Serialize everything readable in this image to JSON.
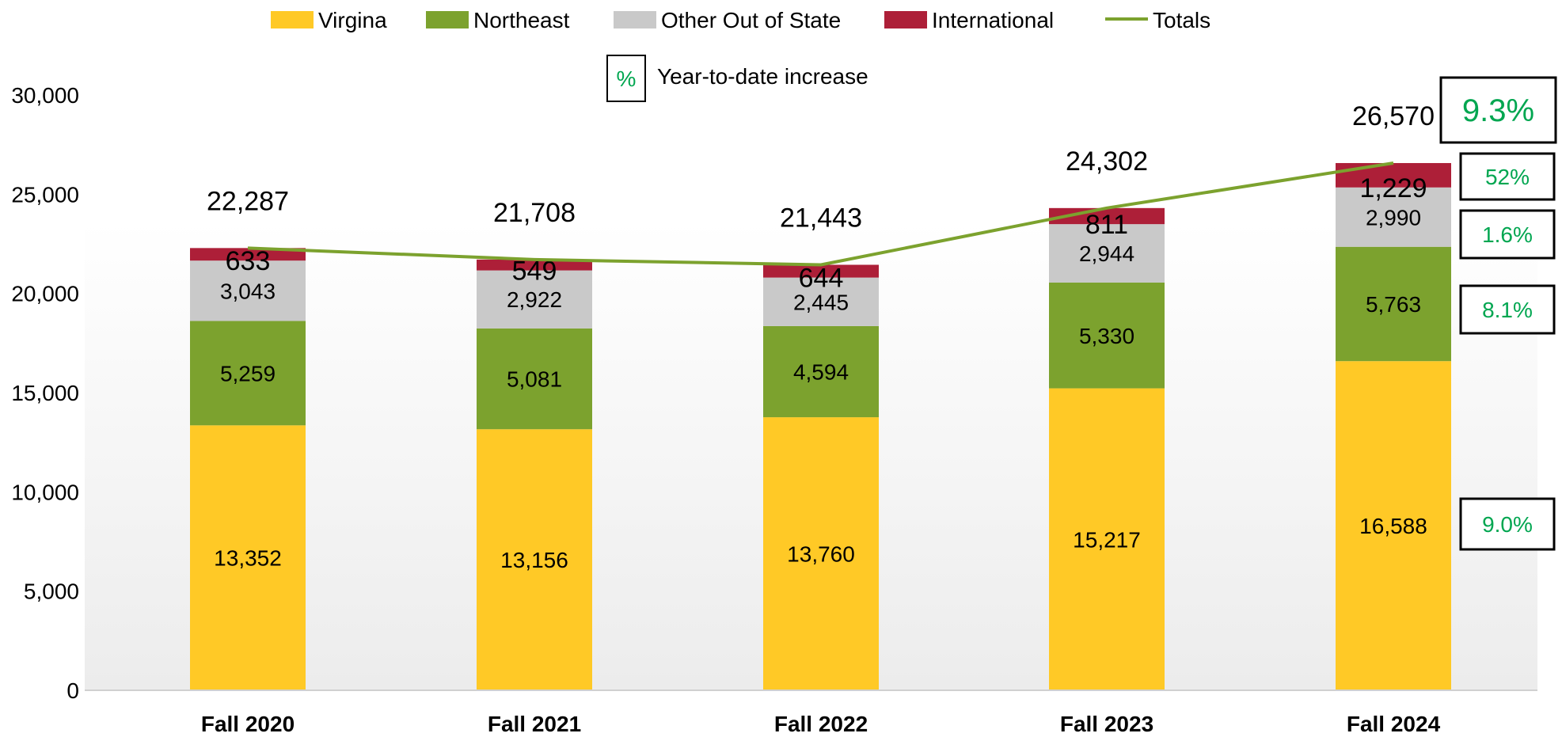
{
  "chart_data": {
    "type": "bar",
    "stacked": true,
    "title": "",
    "xlabel": "",
    "ylabel": "",
    "ylim": [
      0,
      30000
    ],
    "yticks": [
      0,
      5000,
      10000,
      15000,
      20000,
      25000,
      30000
    ],
    "ytick_labels": [
      "0",
      "5,000",
      "10,000",
      "15,000",
      "20,000",
      "25,000",
      "30,000"
    ],
    "grid": false,
    "legend_position": "top",
    "categories": [
      "Fall 2020",
      "Fall 2021",
      "Fall 2022",
      "Fall 2023",
      "Fall 2024"
    ],
    "series": [
      {
        "name": "Virgina",
        "color": "#ffc926",
        "values": [
          13352,
          13156,
          13760,
          15217,
          16588
        ],
        "labels": [
          "13,352",
          "13,156",
          "13,760",
          "15,217",
          "16,588"
        ]
      },
      {
        "name": "Northeast",
        "color": "#7ca22e",
        "values": [
          5259,
          5081,
          4594,
          5330,
          5763
        ],
        "labels": [
          "5,259",
          "5,081",
          "4,594",
          "5,330",
          "5,763"
        ]
      },
      {
        "name": "Other Out of State",
        "color": "#c9c9c9",
        "values": [
          3043,
          2922,
          2445,
          2944,
          2990
        ],
        "labels": [
          "3,043",
          "2,922",
          "2,445",
          "2,944",
          "2,990"
        ]
      },
      {
        "name": "International",
        "color": "#ad1f38",
        "values": [
          633,
          549,
          644,
          811,
          1229
        ],
        "labels": [
          "633",
          "549",
          "644",
          "811",
          "1,229"
        ]
      }
    ],
    "totals": {
      "name": "Totals",
      "color": "#7ca22e",
      "values": [
        22287,
        21708,
        21443,
        24302,
        26570
      ],
      "labels": [
        "22,287",
        "21,708",
        "21,443",
        "24,302",
        "26,570"
      ]
    },
    "pct_legend": {
      "symbol": "%",
      "label": "Year-to-date increase"
    },
    "ytd_increase": {
      "total": "9.3%",
      "International": "52%",
      "Other Out of State": "1.6%",
      "Northeast": "8.1%",
      "Virgina": "9.0%"
    }
  }
}
